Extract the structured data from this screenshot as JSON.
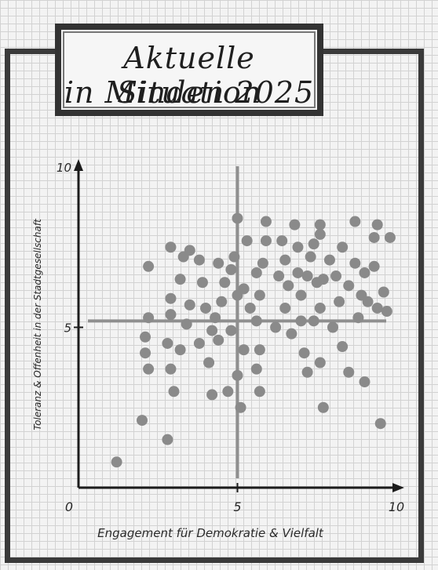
{
  "title": {
    "line1": "Aktuelle Situation",
    "line2": "in Minden 2025"
  },
  "chart_data": {
    "type": "scatter",
    "xlabel": "Engagement für Demokratie & Vielfalt",
    "ylabel": "Toleranz & Offenheit in der Stadtgesellschaft",
    "xlim": [
      0,
      10
    ],
    "ylim": [
      0,
      10
    ],
    "x_ticks": [
      "0",
      "5",
      "10"
    ],
    "y_ticks": [
      "5",
      "10"
    ],
    "reference_lines": {
      "vertical_x": 5,
      "horizontal_y": 5.2
    },
    "colors": {
      "points": "#8a8a8a",
      "reference": "#8f8f8f",
      "axes": "#1c1c1c"
    },
    "points": [
      [
        1.2,
        0.8
      ],
      [
        2.0,
        2.1
      ],
      [
        2.8,
        1.5
      ],
      [
        2.2,
        3.7
      ],
      [
        2.1,
        4.2
      ],
      [
        2.1,
        4.7
      ],
      [
        2.2,
        5.3
      ],
      [
        2.2,
        6.9
      ],
      [
        2.9,
        3.7
      ],
      [
        2.8,
        4.5
      ],
      [
        3.0,
        3.0
      ],
      [
        2.9,
        5.4
      ],
      [
        2.9,
        5.9
      ],
      [
        2.9,
        7.5
      ],
      [
        3.2,
        4.3
      ],
      [
        3.2,
        6.5
      ],
      [
        3.3,
        7.2
      ],
      [
        3.4,
        5.1
      ],
      [
        3.5,
        5.7
      ],
      [
        3.5,
        7.4
      ],
      [
        3.8,
        4.5
      ],
      [
        3.9,
        6.4
      ],
      [
        3.8,
        7.1
      ],
      [
        4.0,
        5.6
      ],
      [
        4.1,
        3.9
      ],
      [
        4.2,
        2.9
      ],
      [
        4.2,
        4.9
      ],
      [
        4.3,
        5.3
      ],
      [
        4.4,
        4.6
      ],
      [
        4.5,
        5.8
      ],
      [
        4.6,
        6.4
      ],
      [
        4.4,
        7.0
      ],
      [
        4.7,
        3.0
      ],
      [
        4.8,
        4.9
      ],
      [
        4.8,
        6.8
      ],
      [
        4.9,
        7.2
      ],
      [
        5.0,
        3.5
      ],
      [
        5.0,
        6.0
      ],
      [
        5.0,
        8.4
      ],
      [
        5.1,
        2.5
      ],
      [
        5.2,
        4.3
      ],
      [
        5.2,
        6.2
      ],
      [
        5.3,
        7.7
      ],
      [
        5.4,
        5.6
      ],
      [
        5.6,
        3.7
      ],
      [
        5.6,
        5.2
      ],
      [
        5.6,
        6.7
      ],
      [
        5.7,
        3.0
      ],
      [
        5.7,
        4.3
      ],
      [
        5.7,
        6.0
      ],
      [
        5.8,
        7.0
      ],
      [
        5.9,
        7.7
      ],
      [
        5.9,
        8.3
      ],
      [
        6.2,
        5.0
      ],
      [
        6.3,
        6.6
      ],
      [
        6.4,
        7.7
      ],
      [
        6.5,
        5.6
      ],
      [
        6.5,
        7.1
      ],
      [
        6.6,
        6.3
      ],
      [
        6.7,
        4.8
      ],
      [
        6.8,
        8.2
      ],
      [
        6.9,
        6.7
      ],
      [
        6.9,
        7.5
      ],
      [
        7.0,
        5.2
      ],
      [
        7.0,
        6.0
      ],
      [
        7.1,
        4.2
      ],
      [
        7.2,
        3.6
      ],
      [
        7.2,
        6.6
      ],
      [
        7.3,
        7.2
      ],
      [
        7.4,
        5.2
      ],
      [
        7.4,
        7.6
      ],
      [
        7.5,
        6.4
      ],
      [
        7.6,
        3.9
      ],
      [
        7.6,
        5.6
      ],
      [
        7.6,
        7.9
      ],
      [
        7.6,
        8.2
      ],
      [
        7.7,
        6.5
      ],
      [
        7.7,
        2.5
      ],
      [
        7.9,
        7.1
      ],
      [
        8.0,
        5.0
      ],
      [
        8.1,
        6.6
      ],
      [
        8.2,
        5.8
      ],
      [
        8.3,
        7.5
      ],
      [
        8.3,
        4.4
      ],
      [
        8.5,
        3.6
      ],
      [
        8.5,
        6.3
      ],
      [
        8.7,
        7.0
      ],
      [
        8.7,
        8.3
      ],
      [
        8.8,
        5.3
      ],
      [
        8.9,
        6.0
      ],
      [
        9.0,
        6.7
      ],
      [
        9.0,
        3.3
      ],
      [
        9.1,
        5.8
      ],
      [
        9.3,
        6.9
      ],
      [
        9.3,
        7.8
      ],
      [
        9.4,
        5.6
      ],
      [
        9.6,
        6.1
      ],
      [
        9.7,
        5.5
      ],
      [
        9.8,
        7.8
      ],
      [
        9.4,
        8.2
      ],
      [
        9.5,
        2.0
      ]
    ]
  }
}
